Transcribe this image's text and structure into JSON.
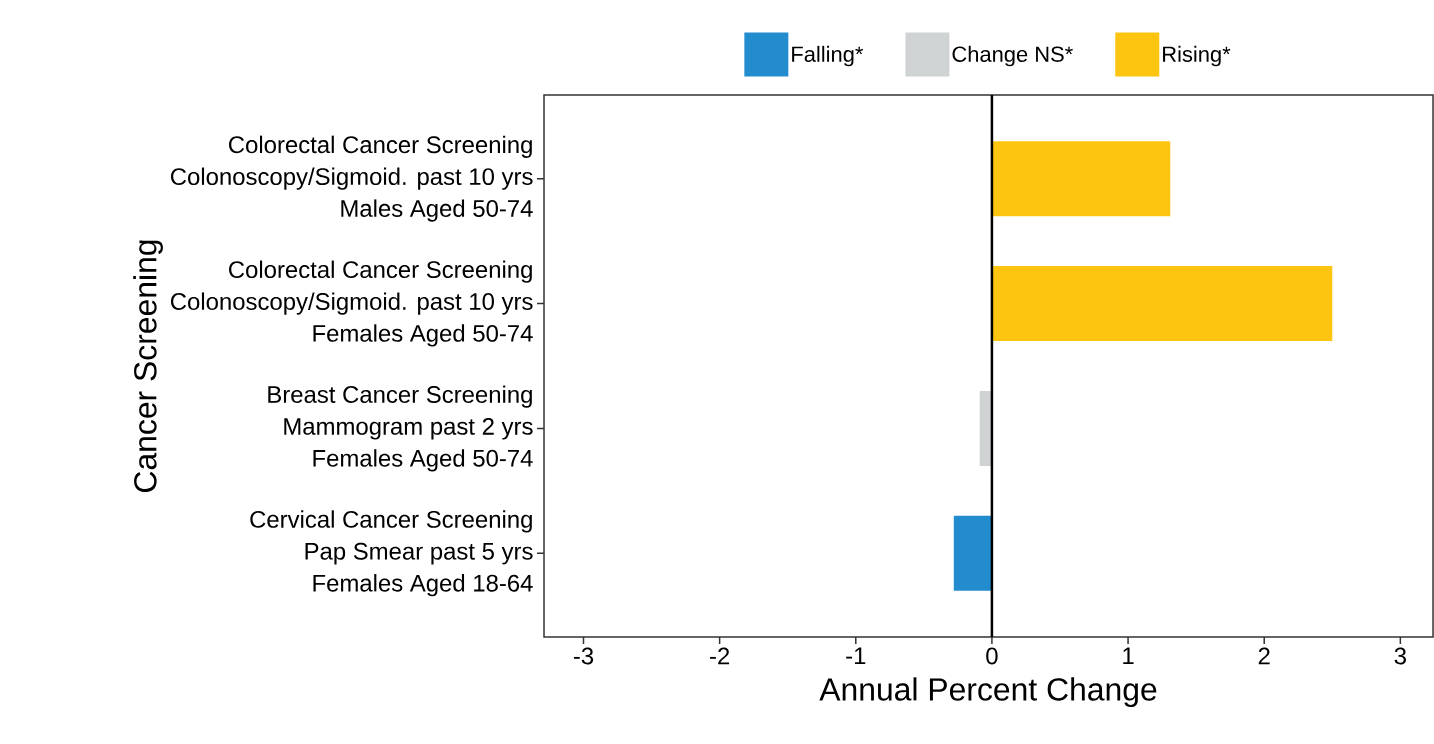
{
  "chart_data": {
    "type": "bar",
    "orientation": "horizontal",
    "xlabel": "Annual Percent Change",
    "ylabel": "Cancer Screening",
    "categories": [
      "Colorectal Cancer Screening\nColonoscopy/Sigmoid. past 10 yrs\nMales Aged 50-74",
      "Colorectal Cancer Screening\nColonoscopy/Sigmoid. past 10 yrs\nFemales Aged 50-74",
      "Breast Cancer Screening\nMammogram past 2 yrs\nFemales Aged 50-74",
      "Cervical Cancer Screening\nPap Smear past 5 yrs\nFemales Aged 18-64"
    ],
    "series": [
      {
        "name": "Falling*",
        "color": "#238ccf",
        "values": [
          null,
          null,
          null,
          -0.28
        ]
      },
      {
        "name": "Change NS*",
        "color": "#d0d3d4",
        "values": [
          null,
          null,
          -0.09,
          null
        ]
      },
      {
        "name": "Rising*",
        "color": "#fdc510",
        "values": [
          1.31,
          2.5,
          null,
          null
        ]
      }
    ],
    "xlim": [
      -3.29,
      3.24
    ],
    "xticks": [
      -3,
      -2,
      -1,
      0,
      1,
      2,
      3
    ],
    "ref_lines": [
      {
        "axis": "x",
        "value": 0,
        "color": "#000000"
      }
    ],
    "grid": false,
    "legend": "top"
  }
}
